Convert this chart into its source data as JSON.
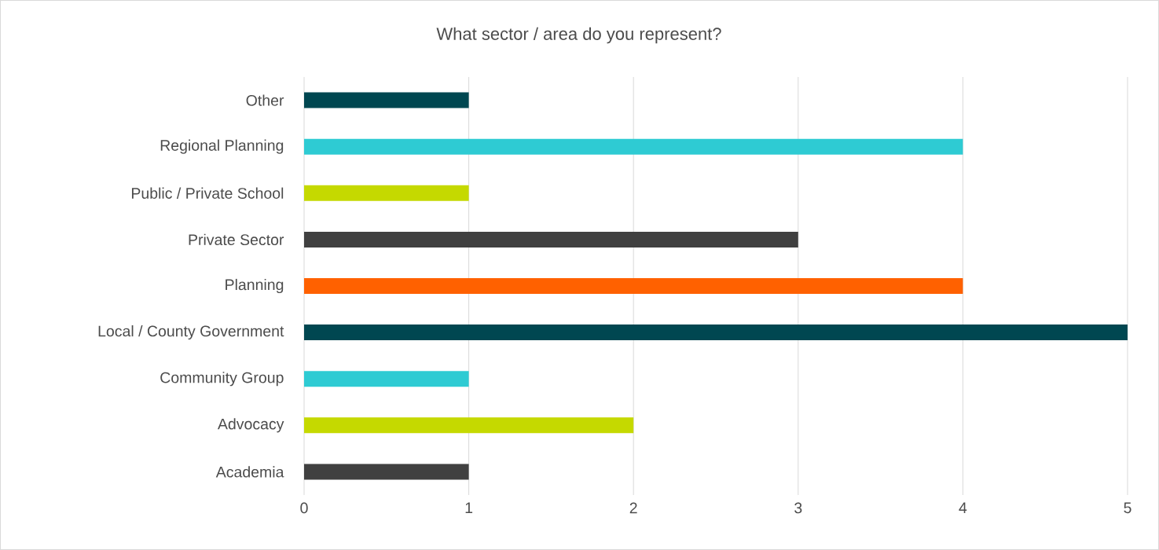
{
  "chart_data": {
    "type": "bar",
    "orientation": "horizontal",
    "title": "What sector / area do you represent?",
    "categories": [
      "Other",
      "Regional Planning",
      "Public / Private School",
      "Private Sector",
      "Planning",
      "Local / County Government",
      "Community Group",
      "Advocacy",
      "Academia"
    ],
    "values": [
      1,
      4,
      1,
      3,
      4,
      5,
      1,
      2,
      1
    ],
    "colors": [
      "#004751",
      "#2ecbd3",
      "#c5d900",
      "#404040",
      "#ff6100",
      "#004751",
      "#2ecbd3",
      "#c5d900",
      "#404040"
    ],
    "xlim": [
      0,
      5
    ],
    "xticks": [
      0,
      1,
      2,
      3,
      4,
      5
    ],
    "grid": "x"
  }
}
